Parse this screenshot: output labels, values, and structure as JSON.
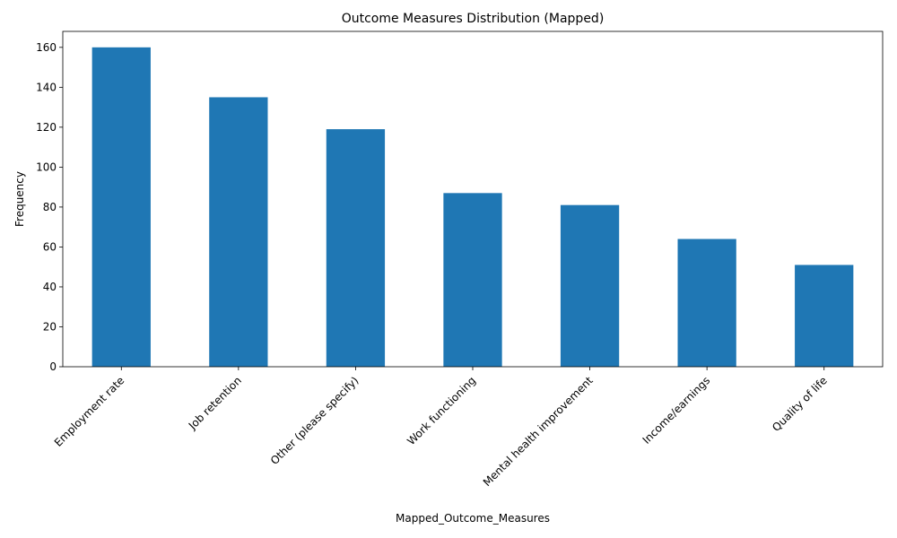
{
  "chart_data": {
    "type": "bar",
    "title": "Outcome Measures Distribution (Mapped)",
    "xlabel": "Mapped_Outcome_Measures",
    "ylabel": "Frequency",
    "categories": [
      "Employment rate",
      "Job retention",
      "Other (please specify)",
      "Work functioning",
      "Mental health improvement",
      "Income/earnings",
      "Quality of life"
    ],
    "values": [
      160,
      135,
      119,
      87,
      81,
      64,
      51
    ],
    "ylim": [
      0,
      168
    ],
    "yticks": [
      0,
      20,
      40,
      60,
      80,
      100,
      120,
      140,
      160
    ],
    "grid": false,
    "bar_color": "#1f77b4"
  }
}
